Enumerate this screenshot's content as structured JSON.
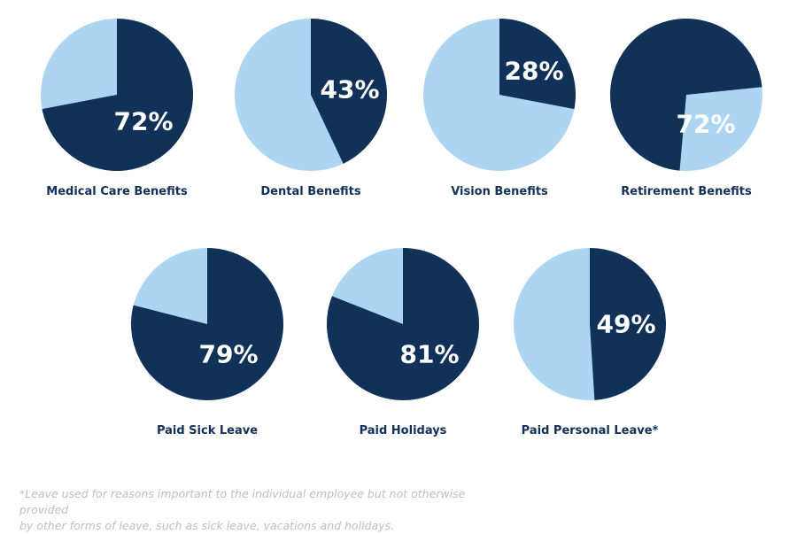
{
  "colors": {
    "share": "#123158",
    "remainder": "#acd5f2",
    "label_text": "#ffffff",
    "category_text": "#123158",
    "footnote_text": "#b6c0cc"
  },
  "chart_data": [
    {
      "type": "pie",
      "category": "Medical Care Benefits",
      "value": 72,
      "label": "72%"
    },
    {
      "type": "pie",
      "category": "Dental Benefits",
      "value": 43,
      "label": "43%"
    },
    {
      "type": "pie",
      "category": "Vision Benefits",
      "value": 28,
      "label": "28%"
    },
    {
      "type": "pie",
      "category": "Retirement Benefits",
      "value": 72,
      "label": "72%"
    },
    {
      "type": "pie",
      "category": "Paid Sick Leave",
      "value": 79,
      "label": "79%"
    },
    {
      "type": "pie",
      "category": "Paid Holidays",
      "value": 81,
      "label": "81%"
    },
    {
      "type": "pie",
      "category": "Paid Personal Leave*",
      "value": 49,
      "label": "49%"
    }
  ],
  "footnote": {
    "line1": "*Leave used for reasons important to the individual employee but not otherwise provided",
    "line2": "by other forms of leave, such as sick leave, vacations and holidays."
  }
}
